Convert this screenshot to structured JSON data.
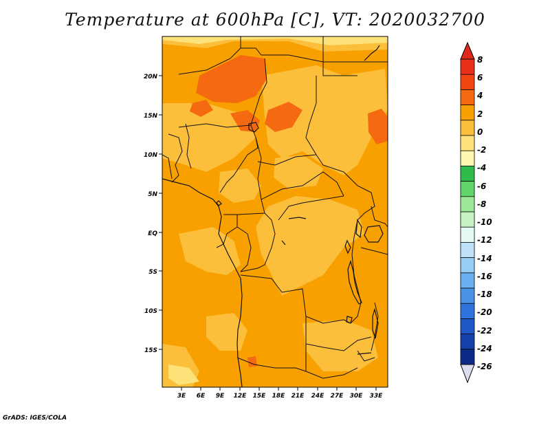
{
  "title": "Temperature at 600hPa [C], VT: 2020032700",
  "footer": "GrADS: IGES/COLA",
  "map": {
    "lat_ticks": [
      "20N",
      "15N",
      "10N",
      "5N",
      "EQ",
      "5S",
      "10S",
      "15S"
    ],
    "lon_ticks": [
      "3E",
      "6E",
      "9E",
      "12E",
      "15E",
      "18E",
      "21E",
      "24E",
      "27E",
      "30E",
      "33E"
    ]
  },
  "colorbar": {
    "labels": [
      "8",
      "6",
      "4",
      "2",
      "0",
      "-2",
      "-4",
      "-6",
      "-8",
      "-10",
      "-12",
      "-14",
      "-16",
      "-18",
      "-20",
      "-22",
      "-24",
      "-26"
    ],
    "colors": [
      "#e8301a",
      "#f04810",
      "#f56a10",
      "#f8a000",
      "#fbbf3c",
      "#fde27a",
      "#fff6b0",
      "#2fbc4b",
      "#62d66a",
      "#9ee89a",
      "#c8f2c4",
      "#e4f8f4",
      "#bfe2f8",
      "#95cdf5",
      "#6aaff0",
      "#4a93e8",
      "#2f73dc",
      "#1e58c9",
      "#1541ac",
      "#0c2a88"
    ],
    "top_color": "#dd2a1a",
    "bottom_color": "#dcdcf0"
  },
  "colors": {
    "field_base": "#f8a000",
    "field_light": "#fbbf3c",
    "field_lighter": "#fde27a",
    "field_warm": "#f56a10",
    "border": "#111111"
  }
}
